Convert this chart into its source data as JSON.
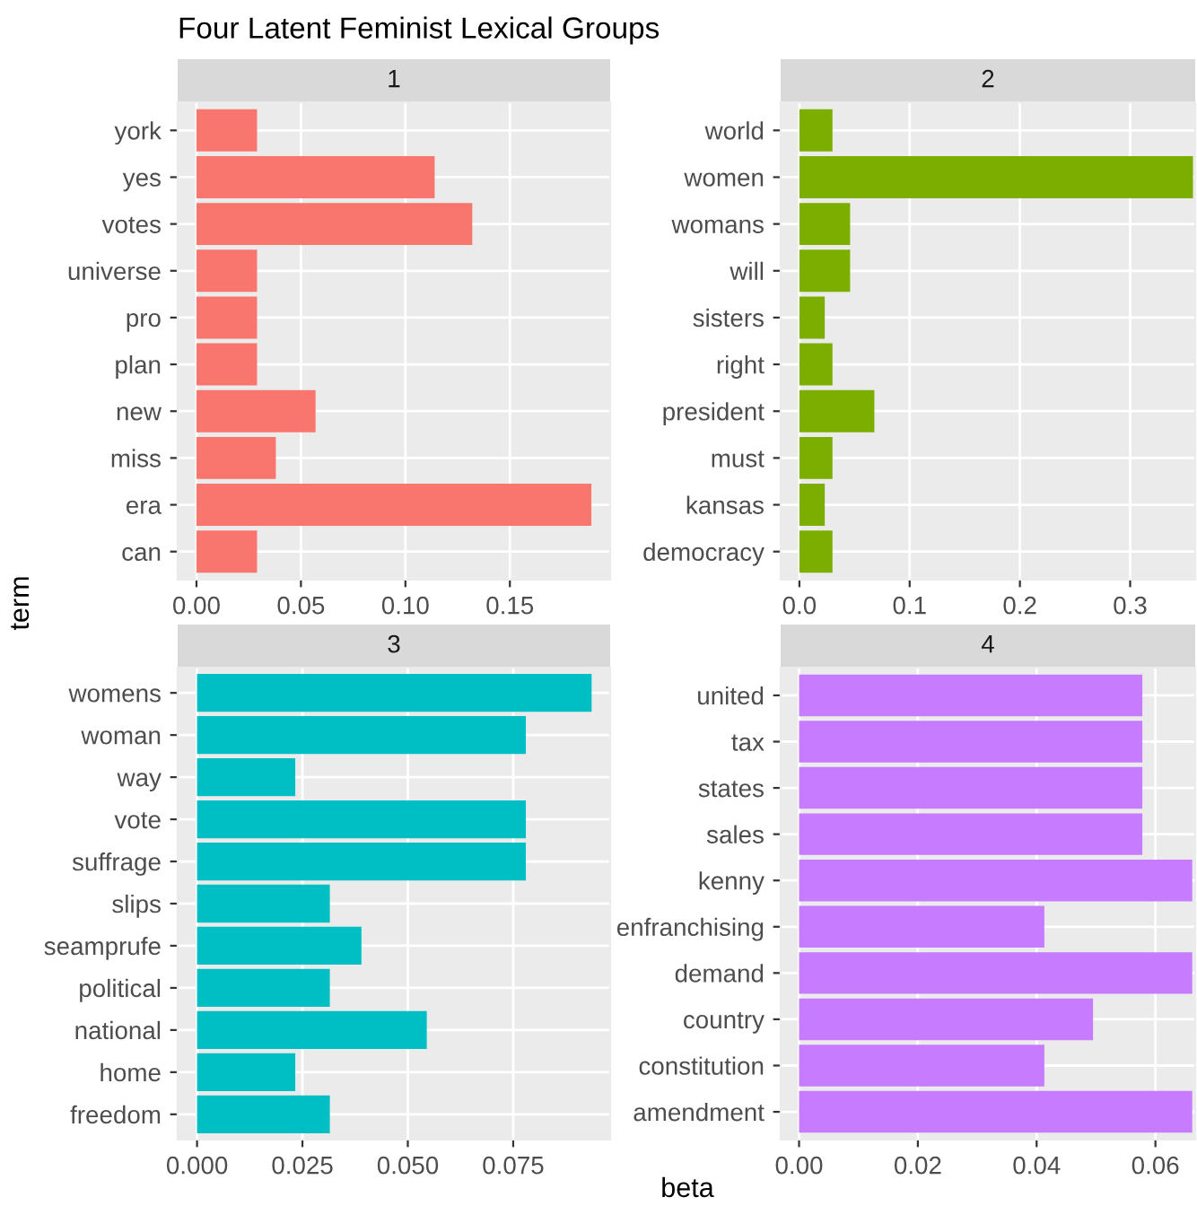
{
  "chart_data": [
    {
      "type": "bar",
      "orientation": "horizontal",
      "title": "1",
      "annotations": [
        "Four Latent Feminist Lexical Groups"
      ],
      "categories": [
        "york",
        "yes",
        "votes",
        "universe",
        "pro",
        "plan",
        "new",
        "miss",
        "era",
        "can"
      ],
      "values": [
        0.029,
        0.114,
        0.132,
        0.029,
        0.029,
        0.029,
        0.057,
        0.038,
        0.189,
        0.029
      ],
      "color": "#f8766d",
      "xlim": [
        -0.009,
        0.198
      ],
      "xticks": [
        {
          "value": 0,
          "label": "0.00"
        },
        {
          "value": 0.05,
          "label": "0.05"
        },
        {
          "value": 0.1,
          "label": "0.10"
        },
        {
          "value": 0.15,
          "label": "0.15"
        }
      ],
      "grid": true
    },
    {
      "type": "bar",
      "orientation": "horizontal",
      "title": "2",
      "categories": [
        "world",
        "women",
        "womans",
        "will",
        "sisters",
        "right",
        "president",
        "must",
        "kansas",
        "democracy"
      ],
      "values": [
        0.03,
        0.357,
        0.046,
        0.046,
        0.023,
        0.03,
        0.068,
        0.03,
        0.023,
        0.03
      ],
      "color": "#7cae00",
      "xlim": [
        -0.017,
        0.359
      ],
      "xticks": [
        {
          "value": 0,
          "label": "0.0"
        },
        0.1,
        0.2,
        0.3
      ],
      "grid": true
    },
    {
      "type": "bar",
      "orientation": "horizontal",
      "title": "3",
      "ylabel": "term",
      "categories": [
        "womens",
        "woman",
        "way",
        "vote",
        "suffrage",
        "slips",
        "seamprufe",
        "political",
        "national",
        "home",
        "freedom"
      ],
      "values": [
        0.0936,
        0.078,
        0.0233,
        0.078,
        0.078,
        0.0315,
        0.039,
        0.0315,
        0.0545,
        0.0233,
        0.0315
      ],
      "color": "#00bfc4",
      "xlim": [
        -0.0046,
        0.098
      ],
      "xticks": [
        {
          "value": 0,
          "label": "0.000"
        },
        0.025,
        {
          "value": 0.05,
          "label": "0.050"
        },
        0.075
      ],
      "grid": true
    },
    {
      "type": "bar",
      "orientation": "horizontal",
      "title": "4",
      "xlabel": "beta",
      "categories": [
        "united",
        "tax",
        "states",
        "sales",
        "kenny",
        "enfranchising",
        "demand",
        "country",
        "constitution",
        "amendment"
      ],
      "values": [
        0.0578,
        0.0578,
        0.0578,
        0.0578,
        0.0662,
        0.0413,
        0.0662,
        0.0495,
        0.0413,
        0.0662
      ],
      "color": "#c77cff",
      "xlim": [
        -0.0031,
        0.0667
      ],
      "xticks": [
        {
          "value": 0,
          "label": "0.00"
        },
        0.02,
        0.04,
        0.06
      ],
      "grid": true
    }
  ]
}
